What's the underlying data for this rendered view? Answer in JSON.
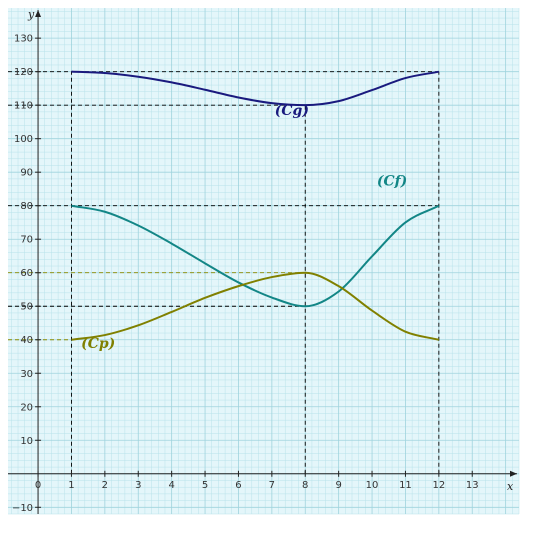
{
  "colors": {
    "background": "#e4f6fa",
    "grid_minor": "#b8e2ea",
    "grid_major": "#9fd3dd",
    "axis": "#222222",
    "guide": "#000000",
    "guide_olive": "#8a8a00",
    "cg": "#1a1a7e",
    "cf": "#138686",
    "cp": "#808000"
  },
  "chart_data": {
    "type": "line",
    "xlabel": "x",
    "ylabel": "y",
    "xlim": [
      -0.9,
      14.4
    ],
    "ylim": [
      -12,
      139
    ],
    "x_ticks": [
      {
        "value": 0,
        "label": "0"
      },
      {
        "value": 1,
        "label": "1"
      },
      {
        "value": 2,
        "label": "2"
      },
      {
        "value": 3,
        "label": "3"
      },
      {
        "value": 4,
        "label": "4"
      },
      {
        "value": 5,
        "label": "5"
      },
      {
        "value": 6,
        "label": "6"
      },
      {
        "value": 7,
        "label": "7"
      },
      {
        "value": 8,
        "label": "8"
      },
      {
        "value": 9,
        "label": "9"
      },
      {
        "value": 10,
        "label": "10"
      },
      {
        "value": 11,
        "label": "11"
      },
      {
        "value": 12,
        "label": "12"
      },
      {
        "value": 13,
        "label": "13"
      }
    ],
    "y_ticks": [
      {
        "value": -10,
        "label": "−10"
      },
      {
        "value": 10,
        "label": "10"
      },
      {
        "value": 20,
        "label": "20"
      },
      {
        "value": 30,
        "label": "30"
      },
      {
        "value": 40,
        "label": "40"
      },
      {
        "value": 50,
        "label": "50"
      },
      {
        "value": 60,
        "label": "60"
      },
      {
        "value": 70,
        "label": "70"
      },
      {
        "value": 80,
        "label": "80"
      },
      {
        "value": 90,
        "label": "90"
      },
      {
        "value": 100,
        "label": "100"
      },
      {
        "value": 110,
        "label": "110"
      },
      {
        "value": 120,
        "label": "120"
      },
      {
        "value": 130,
        "label": "130"
      }
    ],
    "grid": true,
    "series": [
      {
        "name": "(Cg)",
        "color_key": "cg",
        "label_at": [
          7.6,
          107
        ],
        "points": [
          [
            1,
            120
          ],
          [
            2,
            119.6
          ],
          [
            3,
            118.5
          ],
          [
            4,
            116.8
          ],
          [
            5,
            114.6
          ],
          [
            6,
            112.3
          ],
          [
            7,
            110.6
          ],
          [
            8,
            110
          ],
          [
            9,
            111.2
          ],
          [
            10,
            114.5
          ],
          [
            11,
            118.1
          ],
          [
            12,
            120
          ]
        ]
      },
      {
        "name": "(Cf)",
        "color_key": "cf",
        "label_at": [
          10.6,
          86
        ],
        "points": [
          [
            1,
            80
          ],
          [
            2,
            78.2
          ],
          [
            3,
            74.1
          ],
          [
            4,
            68.7
          ],
          [
            5,
            62.8
          ],
          [
            6,
            57.1
          ],
          [
            7,
            52.6
          ],
          [
            8,
            50
          ],
          [
            9,
            54.4
          ],
          [
            10,
            64.9
          ],
          [
            11,
            75
          ],
          [
            12,
            80
          ]
        ]
      },
      {
        "name": "(Cp)",
        "color_key": "cp",
        "label_at": [
          1.8,
          37.5
        ],
        "points": [
          [
            1,
            40
          ],
          [
            2,
            41.4
          ],
          [
            3,
            44.3
          ],
          [
            4,
            48.3
          ],
          [
            5,
            52.5
          ],
          [
            6,
            56
          ],
          [
            7,
            58.7
          ],
          [
            8,
            60
          ],
          [
            9,
            56
          ],
          [
            10,
            48.7
          ],
          [
            11,
            42.4
          ],
          [
            12,
            40
          ]
        ]
      }
    ],
    "guides": [
      {
        "y": 120,
        "x_from": -0.9,
        "x_to": 12,
        "color_key": "guide"
      },
      {
        "y": 110,
        "x_from": -0.9,
        "x_to": 8,
        "color_key": "guide"
      },
      {
        "y": 80,
        "x_from": -0.9,
        "x_to": 12,
        "color_key": "guide"
      },
      {
        "y": 60,
        "x_from": -0.9,
        "x_to": 8,
        "color_key": "guide_olive"
      },
      {
        "y": 50,
        "x_from": -0.9,
        "x_to": 8,
        "color_key": "guide"
      },
      {
        "y": 40,
        "x_from": -0.9,
        "x_to": 1,
        "color_key": "guide_olive"
      },
      {
        "x": 1,
        "y_from": 0,
        "y_to": 120,
        "color_key": "guide"
      },
      {
        "x": 8,
        "y_from": 0,
        "y_to": 110,
        "color_key": "guide"
      },
      {
        "x": 12,
        "y_from": 0,
        "y_to": 120,
        "color_key": "guide"
      }
    ]
  }
}
